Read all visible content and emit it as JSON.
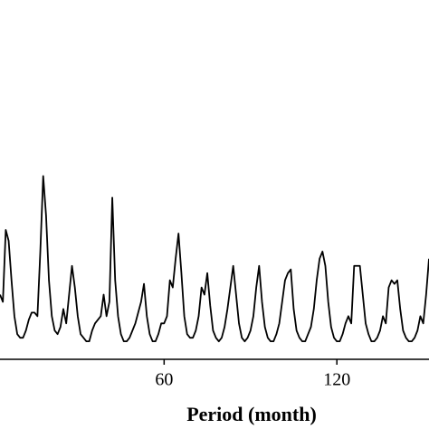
{
  "chart_data": {
    "type": "line",
    "xlabel": "Period (month)",
    "x": [
      3,
      4,
      5,
      6,
      7,
      8,
      9,
      10,
      11,
      12,
      13,
      14,
      15,
      16,
      17,
      18,
      19,
      20,
      21,
      22,
      23,
      24,
      25,
      26,
      27,
      28,
      29,
      30,
      31,
      32,
      33,
      34,
      35,
      36,
      37,
      38,
      39,
      40,
      41,
      42,
      43,
      44,
      45,
      46,
      47,
      48,
      49,
      50,
      51,
      52,
      53,
      54,
      55,
      56,
      57,
      58,
      59,
      60,
      61,
      62,
      63,
      64,
      65,
      66,
      67,
      68,
      69,
      70,
      71,
      72,
      73,
      74,
      75,
      76,
      77,
      78,
      79,
      80,
      81,
      82,
      83,
      84,
      85,
      86,
      87,
      88,
      89,
      90,
      91,
      92,
      93,
      94,
      95,
      96,
      97,
      98,
      99,
      100,
      101,
      102,
      103,
      104,
      105,
      106,
      107,
      108,
      109,
      110,
      111,
      112,
      113,
      114,
      115,
      116,
      117,
      118,
      119,
      120,
      121,
      122,
      123,
      124,
      125,
      126,
      127,
      128,
      129,
      130,
      131,
      132,
      133,
      134,
      135,
      136,
      137,
      138,
      139,
      140,
      141,
      142,
      143,
      144,
      145,
      146,
      147,
      148,
      149,
      150,
      151,
      152
    ],
    "series": [
      {
        "color": "#000000",
        "values": [
          18,
          16,
          36,
          33,
          22,
          12,
          7,
          6,
          6,
          8,
          11,
          13,
          13,
          12,
          30,
          51,
          40,
          22,
          12,
          8,
          7,
          9,
          14,
          10,
          18,
          26,
          20,
          12,
          7,
          6,
          5,
          5,
          8,
          10,
          11,
          12,
          18,
          12,
          16,
          45,
          22,
          12,
          7,
          5,
          5,
          6,
          8,
          10,
          13,
          16,
          21,
          12,
          7,
          5,
          5,
          7,
          10,
          10,
          12,
          22,
          20,
          28,
          35,
          24,
          12,
          7,
          6,
          6,
          8,
          12,
          20,
          18,
          24,
          15,
          8,
          6,
          5,
          6,
          9,
          14,
          20,
          26,
          18,
          10,
          6,
          5,
          6,
          8,
          12,
          20,
          26,
          16,
          9,
          6,
          5,
          5,
          7,
          10,
          16,
          22,
          24,
          25,
          14,
          8,
          6,
          5,
          5,
          7,
          9,
          14,
          22,
          28,
          30,
          26,
          16,
          9,
          6,
          5,
          5,
          7,
          10,
          12,
          10,
          26,
          26,
          26,
          18,
          10,
          7,
          5,
          5,
          6,
          8,
          12,
          10,
          20,
          22,
          21,
          22,
          14,
          8,
          6,
          5,
          5,
          6,
          8,
          12,
          10,
          18,
          28
        ]
      }
    ],
    "xlim": [
      3,
      152
    ],
    "ylim": [
      0,
      100
    ],
    "xticks": [
      60,
      120
    ]
  }
}
